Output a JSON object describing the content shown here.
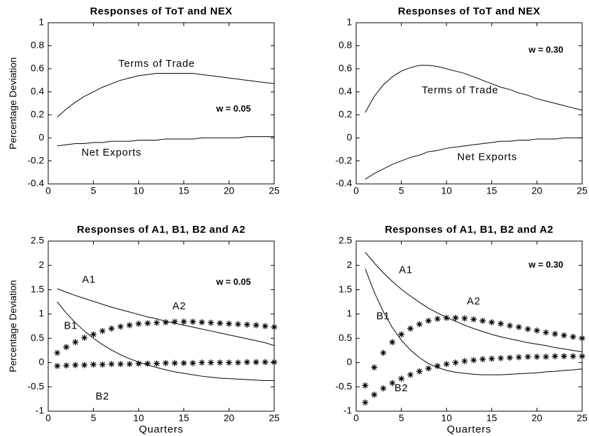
{
  "chart_data": [
    {
      "type": "line",
      "title": "Responses of ToT and NEX",
      "ylabel": "Percentage Deviation",
      "annotation": "w = 0.05",
      "x": [
        1,
        2,
        3,
        4,
        5,
        6,
        7,
        8,
        9,
        10,
        11,
        12,
        13,
        14,
        15,
        16,
        17,
        18,
        19,
        20,
        21,
        22,
        23,
        24,
        25
      ],
      "series": [
        {
          "name": "Terms of Trade",
          "color": "#000000",
          "style": "line",
          "values": [
            0.18,
            0.25,
            0.31,
            0.36,
            0.4,
            0.44,
            0.47,
            0.5,
            0.52,
            0.54,
            0.55,
            0.56,
            0.56,
            0.56,
            0.56,
            0.56,
            0.55,
            0.54,
            0.53,
            0.52,
            0.51,
            0.5,
            0.49,
            0.48,
            0.47
          ]
        },
        {
          "name": "Net Exports",
          "color": "#000000",
          "style": "line",
          "values": [
            -0.07,
            -0.06,
            -0.05,
            -0.05,
            -0.04,
            -0.04,
            -0.03,
            -0.03,
            -0.03,
            -0.02,
            -0.02,
            -0.02,
            -0.01,
            -0.01,
            -0.01,
            -0.01,
            0,
            0,
            0,
            0,
            0,
            0.01,
            0.01,
            0.01,
            0.01
          ]
        }
      ],
      "xlim": [
        0,
        25
      ],
      "xticks": [
        0,
        5,
        10,
        15,
        20,
        25
      ],
      "ylim": [
        -0.4,
        1
      ],
      "yticks": [
        -0.4,
        -0.2,
        0,
        0.2,
        0.4,
        0.6,
        0.8,
        1
      ]
    },
    {
      "type": "line",
      "title": "Responses of ToT and NEX",
      "annotation": "w = 0.30",
      "x": [
        1,
        2,
        3,
        4,
        5,
        6,
        7,
        8,
        9,
        10,
        11,
        12,
        13,
        14,
        15,
        16,
        17,
        18,
        19,
        20,
        21,
        22,
        23,
        24,
        25
      ],
      "series": [
        {
          "name": "Terms of Trade",
          "color": "#000000",
          "style": "line",
          "values": [
            0.22,
            0.36,
            0.46,
            0.53,
            0.58,
            0.61,
            0.63,
            0.63,
            0.62,
            0.6,
            0.58,
            0.56,
            0.53,
            0.5,
            0.47,
            0.44,
            0.42,
            0.39,
            0.37,
            0.34,
            0.32,
            0.3,
            0.28,
            0.26,
            0.24
          ]
        },
        {
          "name": "Net Exports",
          "color": "#000000",
          "style": "line",
          "values": [
            -0.36,
            -0.31,
            -0.27,
            -0.23,
            -0.2,
            -0.17,
            -0.15,
            -0.12,
            -0.11,
            -0.09,
            -0.08,
            -0.07,
            -0.06,
            -0.05,
            -0.04,
            -0.03,
            -0.03,
            -0.02,
            -0.02,
            -0.01,
            -0.01,
            -0.01,
            0,
            0,
            0
          ]
        }
      ],
      "xlim": [
        0,
        25
      ],
      "xticks": [
        0,
        5,
        10,
        15,
        20,
        25
      ],
      "ylim": [
        -0.4,
        1
      ],
      "yticks": [
        -0.4,
        -0.2,
        0,
        0.2,
        0.4,
        0.6,
        0.8,
        1
      ]
    },
    {
      "type": "line",
      "title": "Responses of A1, B1, B2 and A2",
      "ylabel": "Percentage Deviation",
      "xlabel": "Quarters",
      "annotation": "w = 0.05",
      "x": [
        1,
        2,
        3,
        4,
        5,
        6,
        7,
        8,
        9,
        10,
        11,
        12,
        13,
        14,
        15,
        16,
        17,
        18,
        19,
        20,
        21,
        22,
        23,
        24,
        25
      ],
      "series": [
        {
          "name": "A1",
          "color": "#000000",
          "style": "line",
          "values": [
            1.52,
            1.45,
            1.38,
            1.32,
            1.26,
            1.2,
            1.14,
            1.09,
            1.04,
            0.99,
            0.94,
            0.9,
            0.85,
            0.81,
            0.77,
            0.73,
            0.69,
            0.65,
            0.61,
            0.57,
            0.53,
            0.49,
            0.45,
            0.41,
            0.35
          ]
        },
        {
          "name": "B1",
          "color": "#000000",
          "style": "line",
          "values": [
            1.25,
            1.02,
            0.82,
            0.65,
            0.5,
            0.37,
            0.26,
            0.16,
            0.08,
            0.01,
            -0.05,
            -0.1,
            -0.15,
            -0.19,
            -0.22,
            -0.25,
            -0.28,
            -0.3,
            -0.32,
            -0.33,
            -0.34,
            -0.35,
            -0.36,
            -0.37,
            -0.37
          ]
        },
        {
          "name": "B2",
          "color": "#000000",
          "style": "marker",
          "values": [
            -0.07,
            -0.06,
            -0.05,
            -0.05,
            -0.04,
            -0.04,
            -0.03,
            -0.03,
            -0.03,
            -0.02,
            -0.02,
            -0.02,
            -0.01,
            -0.01,
            -0.01,
            -0.01,
            0,
            0,
            0,
            0,
            0,
            0.01,
            0.01,
            0.01,
            0.01
          ]
        },
        {
          "name": "A2",
          "color": "#000000",
          "style": "marker",
          "values": [
            0.2,
            0.32,
            0.42,
            0.51,
            0.58,
            0.65,
            0.7,
            0.74,
            0.77,
            0.8,
            0.81,
            0.82,
            0.83,
            0.84,
            0.84,
            0.84,
            0.83,
            0.82,
            0.81,
            0.8,
            0.79,
            0.78,
            0.77,
            0.75,
            0.73
          ]
        }
      ],
      "xlim": [
        0,
        25
      ],
      "xticks": [
        0,
        5,
        10,
        15,
        20,
        25
      ],
      "ylim": [
        -1,
        2.5
      ],
      "yticks": [
        -1,
        -0.5,
        0,
        0.5,
        1,
        1.5,
        2,
        2.5
      ]
    },
    {
      "type": "line",
      "title": "Responses of A1, B1, B2 and A2",
      "xlabel": "Quarters",
      "annotation": "w = 0.30",
      "x": [
        1,
        2,
        3,
        4,
        5,
        6,
        7,
        8,
        9,
        10,
        11,
        12,
        13,
        14,
        15,
        16,
        17,
        18,
        19,
        20,
        21,
        22,
        23,
        24,
        25
      ],
      "series": [
        {
          "name": "A1",
          "color": "#000000",
          "style": "line",
          "values": [
            2.27,
            2.05,
            1.85,
            1.67,
            1.51,
            1.37,
            1.24,
            1.12,
            1.02,
            0.93,
            0.85,
            0.77,
            0.7,
            0.64,
            0.58,
            0.53,
            0.49,
            0.45,
            0.41,
            0.38,
            0.35,
            0.31,
            0.28,
            0.25,
            0.22
          ]
        },
        {
          "name": "B1",
          "color": "#000000",
          "style": "line",
          "values": [
            1.93,
            1.45,
            1.05,
            0.72,
            0.46,
            0.26,
            0.1,
            -0.02,
            -0.1,
            -0.16,
            -0.2,
            -0.22,
            -0.24,
            -0.25,
            -0.25,
            -0.25,
            -0.24,
            -0.23,
            -0.22,
            -0.21,
            -0.19,
            -0.18,
            -0.16,
            -0.15,
            -0.13
          ]
        },
        {
          "name": "B2",
          "color": "#000000",
          "style": "marker",
          "values": [
            -0.82,
            -0.66,
            -0.53,
            -0.42,
            -0.33,
            -0.25,
            -0.18,
            -0.12,
            -0.07,
            -0.03,
            0,
            0.03,
            0.05,
            0.07,
            0.08,
            0.09,
            0.1,
            0.11,
            0.12,
            0.12,
            0.12,
            0.13,
            0.13,
            0.13,
            0.13
          ]
        },
        {
          "name": "A2",
          "color": "#000000",
          "style": "marker",
          "values": [
            -0.47,
            -0.1,
            0.2,
            0.42,
            0.58,
            0.7,
            0.79,
            0.86,
            0.9,
            0.92,
            0.92,
            0.91,
            0.89,
            0.86,
            0.83,
            0.8,
            0.76,
            0.73,
            0.69,
            0.66,
            0.62,
            0.59,
            0.56,
            0.53,
            0.5
          ]
        }
      ],
      "xlim": [
        0,
        25
      ],
      "xticks": [
        0,
        5,
        10,
        15,
        20,
        25
      ],
      "ylim": [
        -1,
        2.5
      ],
      "yticks": [
        -1,
        -0.5,
        0,
        0.5,
        1,
        1.5,
        2,
        2.5
      ]
    }
  ]
}
